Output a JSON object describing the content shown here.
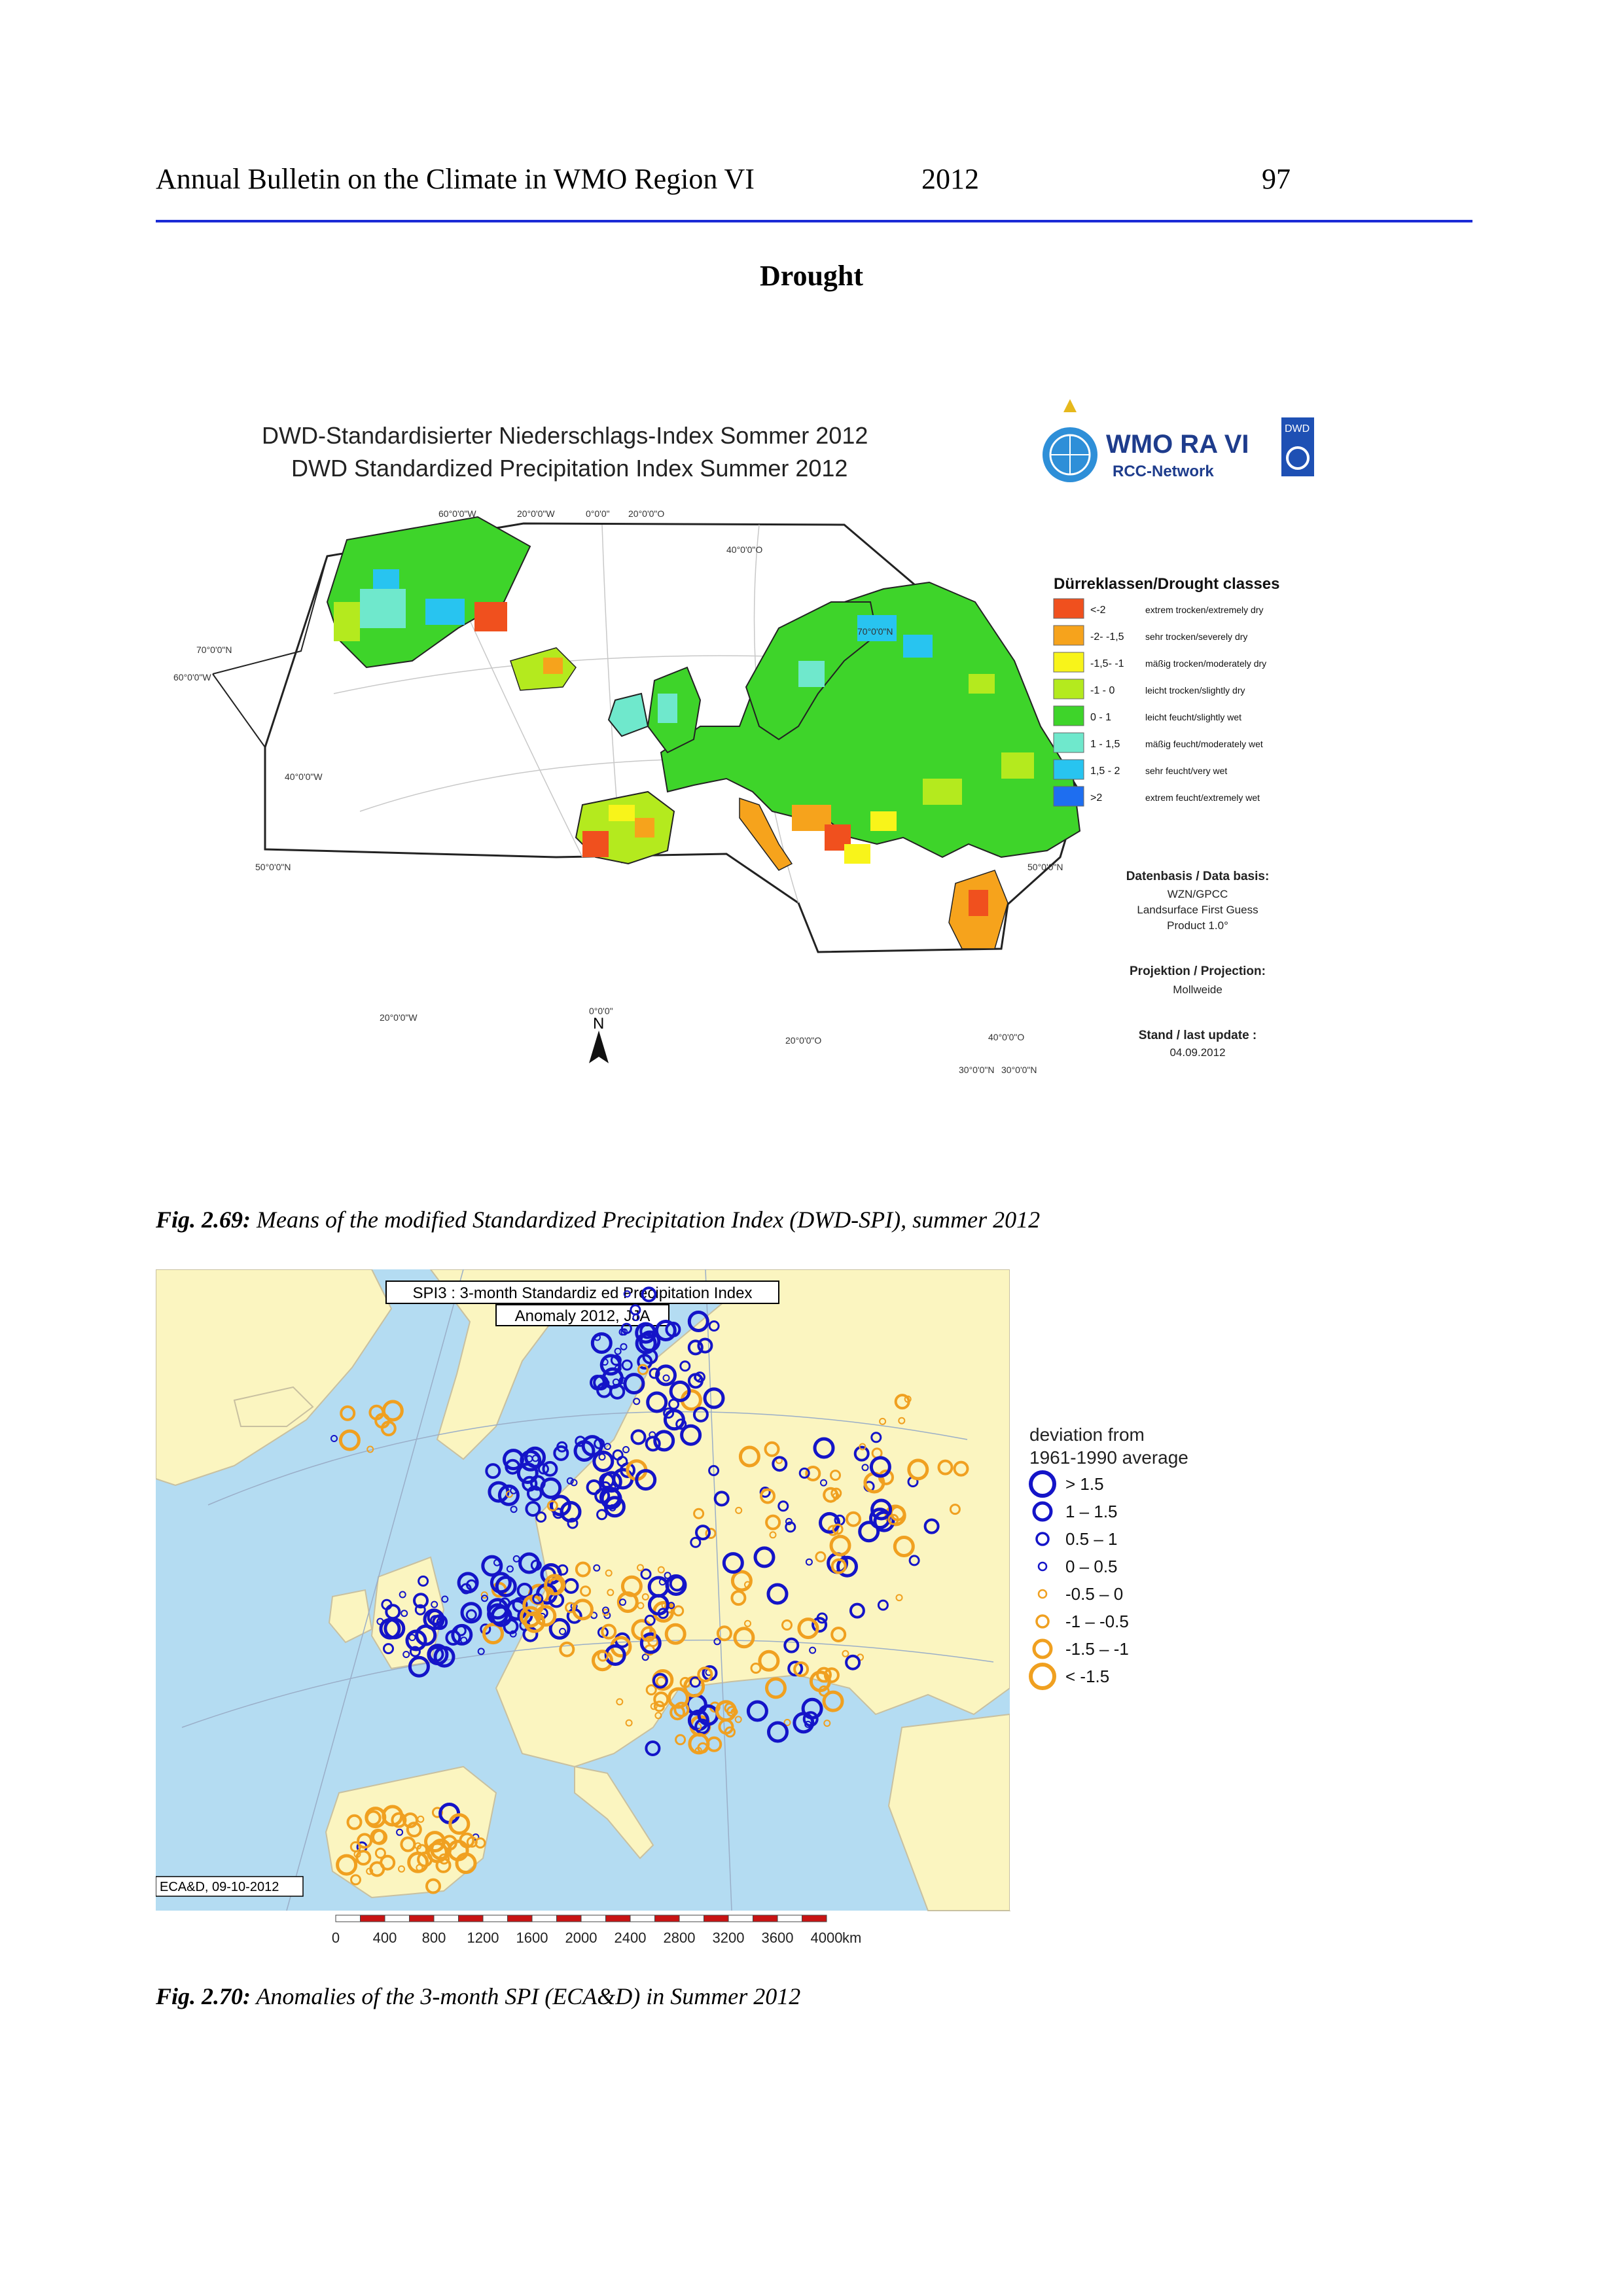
{
  "header": {
    "title": "Annual Bulletin on the Climate in WMO Region VI",
    "year": "2012",
    "page_number": "97"
  },
  "section_title": "Drought",
  "figure1": {
    "title_de": "DWD-Standardisierter Niederschlags-Index Sommer 2012",
    "title_en": "DWD Standardized Precipitation Index Summer 2012",
    "logo_text": "WMO RA VI",
    "logo_sub": "RCC-Network",
    "logo_badge": "DWD",
    "legend_title": "Dürreklassen/Drought classes",
    "classes": [
      {
        "range": "<-2",
        "label": "extrem trocken/extremely dry",
        "color": "#f0501e"
      },
      {
        "range": "-2- -1,5",
        "label": "sehr trocken/severely dry",
        "color": "#f6a31c"
      },
      {
        "range": "-1,5- -1",
        "label": "mäßig trocken/moderately dry",
        "color": "#f8f41a"
      },
      {
        "range": "-1 - 0",
        "label": "leicht trocken/slightly dry",
        "color": "#b4ea1e"
      },
      {
        "range": "0 - 1",
        "label": "leicht feucht/slightly wet",
        "color": "#3ed42a"
      },
      {
        "range": "1 - 1,5",
        "label": "mäßig feucht/moderately wet",
        "color": "#6fe8cc"
      },
      {
        "range": "1,5 - 2",
        "label": "sehr feucht/very wet",
        "color": "#28c4f0"
      },
      {
        "range": ">2",
        "label": "extrem feucht/extremely wet",
        "color": "#1e6ef0"
      }
    ],
    "data_basis_label": "Datenbasis / Data basis:",
    "data_basis_lines": [
      "WZN/GPCC",
      "Landsurface First Guess",
      "Product 1.0°"
    ],
    "projection_label": "Projektion / Projection:",
    "projection_value": "Mollweide",
    "update_label": "Stand / last update :",
    "update_value": "04.09.2012",
    "graticule_labels": {
      "lon_60w": "60°0'0\"W",
      "lon_20w_top": "20°0'0\"W",
      "lon_0_top": "0°0'0\"",
      "lon_20e_top": "20°0'0\"O",
      "lon_40e": "40°0'0\"O",
      "lat_70n_left": "70°0'0\"N",
      "lat_60w": "60°0'0\"W",
      "lon_40w": "40°0'0\"W",
      "lat_50n_left": "50°0'0\"N",
      "lat_70n_right": "70°0'0\"N",
      "lat_50n_right": "50°0'0\"N",
      "lon_20w_bottom": "20°0'0\"W",
      "lon_0_bottom": "0°0'0\"",
      "lon_20e_bottom": "20°0'0\"O",
      "lon_40e_bottom": "40°0'0\"O",
      "lat_30n": "30°0'0\"N",
      "lon_30n_right": "30°0'0\"N"
    },
    "north_label": "N"
  },
  "caption1": {
    "label": "Fig. 2.69:",
    "text": " Means of the modified Standardized Precipitation Index (DWD-SPI), summer 2012"
  },
  "figure2": {
    "title_line1": "SPI3 : 3-month Standardiz ed Precipitation Index",
    "title_line2": "Anomaly 2012, JJA",
    "legend_title_line1": "deviation from",
    "legend_title_line2": "1961-1990 average",
    "legend": [
      {
        "label": "> 1.5",
        "color": "#1414c8",
        "size": "large"
      },
      {
        "label": "1 – 1.5",
        "color": "#1414c8",
        "size": "medium"
      },
      {
        "label": "0.5 – 1",
        "color": "#1414c8",
        "size": "small"
      },
      {
        "label": "0 – 0.5",
        "color": "#1414c8",
        "size": "tiny"
      },
      {
        "label": "-0.5 – 0",
        "color": "#f0a020",
        "size": "tiny"
      },
      {
        "label": "-1 – -0.5",
        "color": "#f0a020",
        "size": "small"
      },
      {
        "label": "-1.5 – -1",
        "color": "#f0a020",
        "size": "medium"
      },
      {
        "label": "< -1.5",
        "color": "#f0a020",
        "size": "large"
      }
    ],
    "source": "ECA&D, 09-10-2012",
    "scale_ticks": [
      "0",
      "400",
      "800",
      "1200",
      "1600",
      "2000",
      "2400",
      "2800",
      "3200",
      "3600",
      "4000"
    ],
    "scale_unit": "km"
  },
  "caption2": {
    "label": "Fig. 2.70:",
    "text": " Anomalies of the 3-month SPI (ECA&D) in Summer 2012"
  }
}
